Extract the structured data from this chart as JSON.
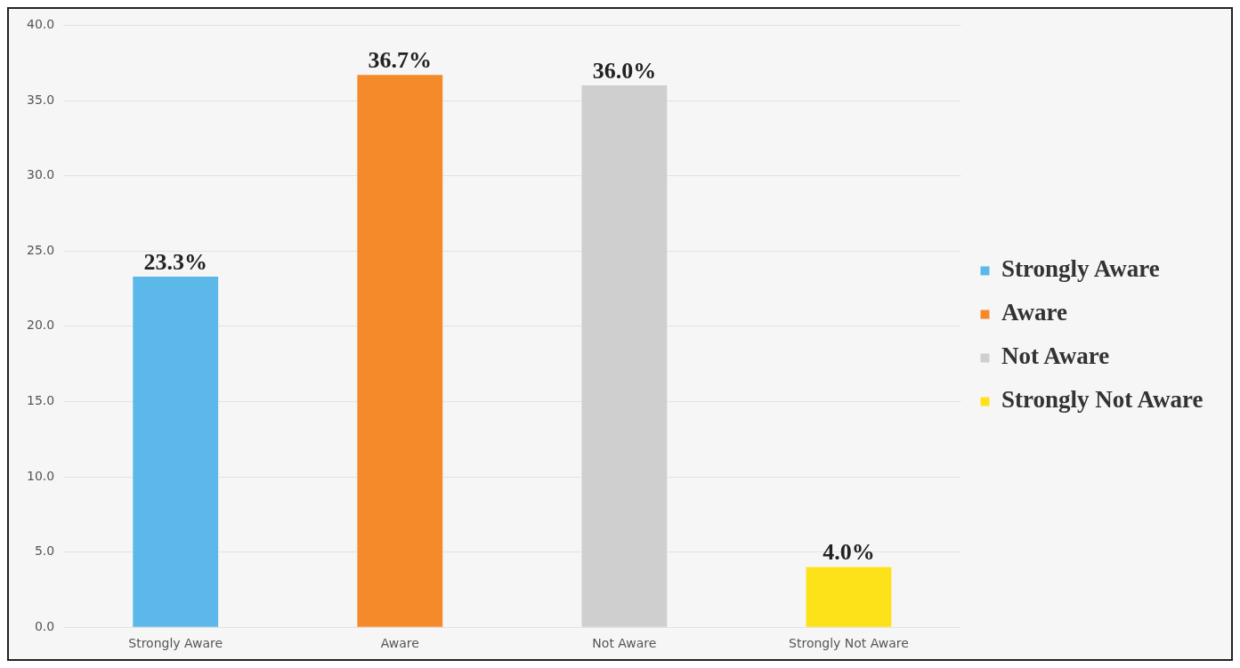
{
  "chart_data": {
    "type": "bar",
    "categories": [
      "Strongly Aware",
      "Aware",
      "Not Aware",
      "Strongly Not Aware"
    ],
    "series": [
      {
        "name": "Strongly Aware",
        "color": "#5bb8e8",
        "values": [
          23.3,
          null,
          null,
          null
        ],
        "value_labels": [
          "23.3%",
          null,
          null,
          null
        ]
      },
      {
        "name": "Aware",
        "color": "#f58a2a",
        "values": [
          null,
          36.7,
          null,
          null
        ],
        "value_labels": [
          null,
          "36.7%",
          null,
          null
        ]
      },
      {
        "name": "Not Aware",
        "color": "#cfcfcf",
        "values": [
          null,
          null,
          36.0,
          null
        ],
        "value_labels": [
          null,
          null,
          "36.0%",
          null
        ]
      },
      {
        "name": "Strongly Not Aware",
        "color": "#fde21a",
        "values": [
          null,
          null,
          null,
          4.0
        ],
        "value_labels": [
          null,
          null,
          null,
          "4.0%"
        ]
      }
    ],
    "ylim": [
      0,
      40
    ],
    "yticks": [
      {
        "value": 0,
        "label": "0.0"
      },
      {
        "value": 5,
        "label": "5.0"
      },
      {
        "value": 10,
        "label": "10.0"
      },
      {
        "value": 15,
        "label": "15.0"
      },
      {
        "value": 20,
        "label": "20.0"
      },
      {
        "value": 25,
        "label": "25.0"
      },
      {
        "value": 30,
        "label": "30.0"
      },
      {
        "value": 35,
        "label": "35.0"
      },
      {
        "value": 40,
        "label": "40.0"
      }
    ],
    "grid": "y",
    "legend": "right"
  }
}
